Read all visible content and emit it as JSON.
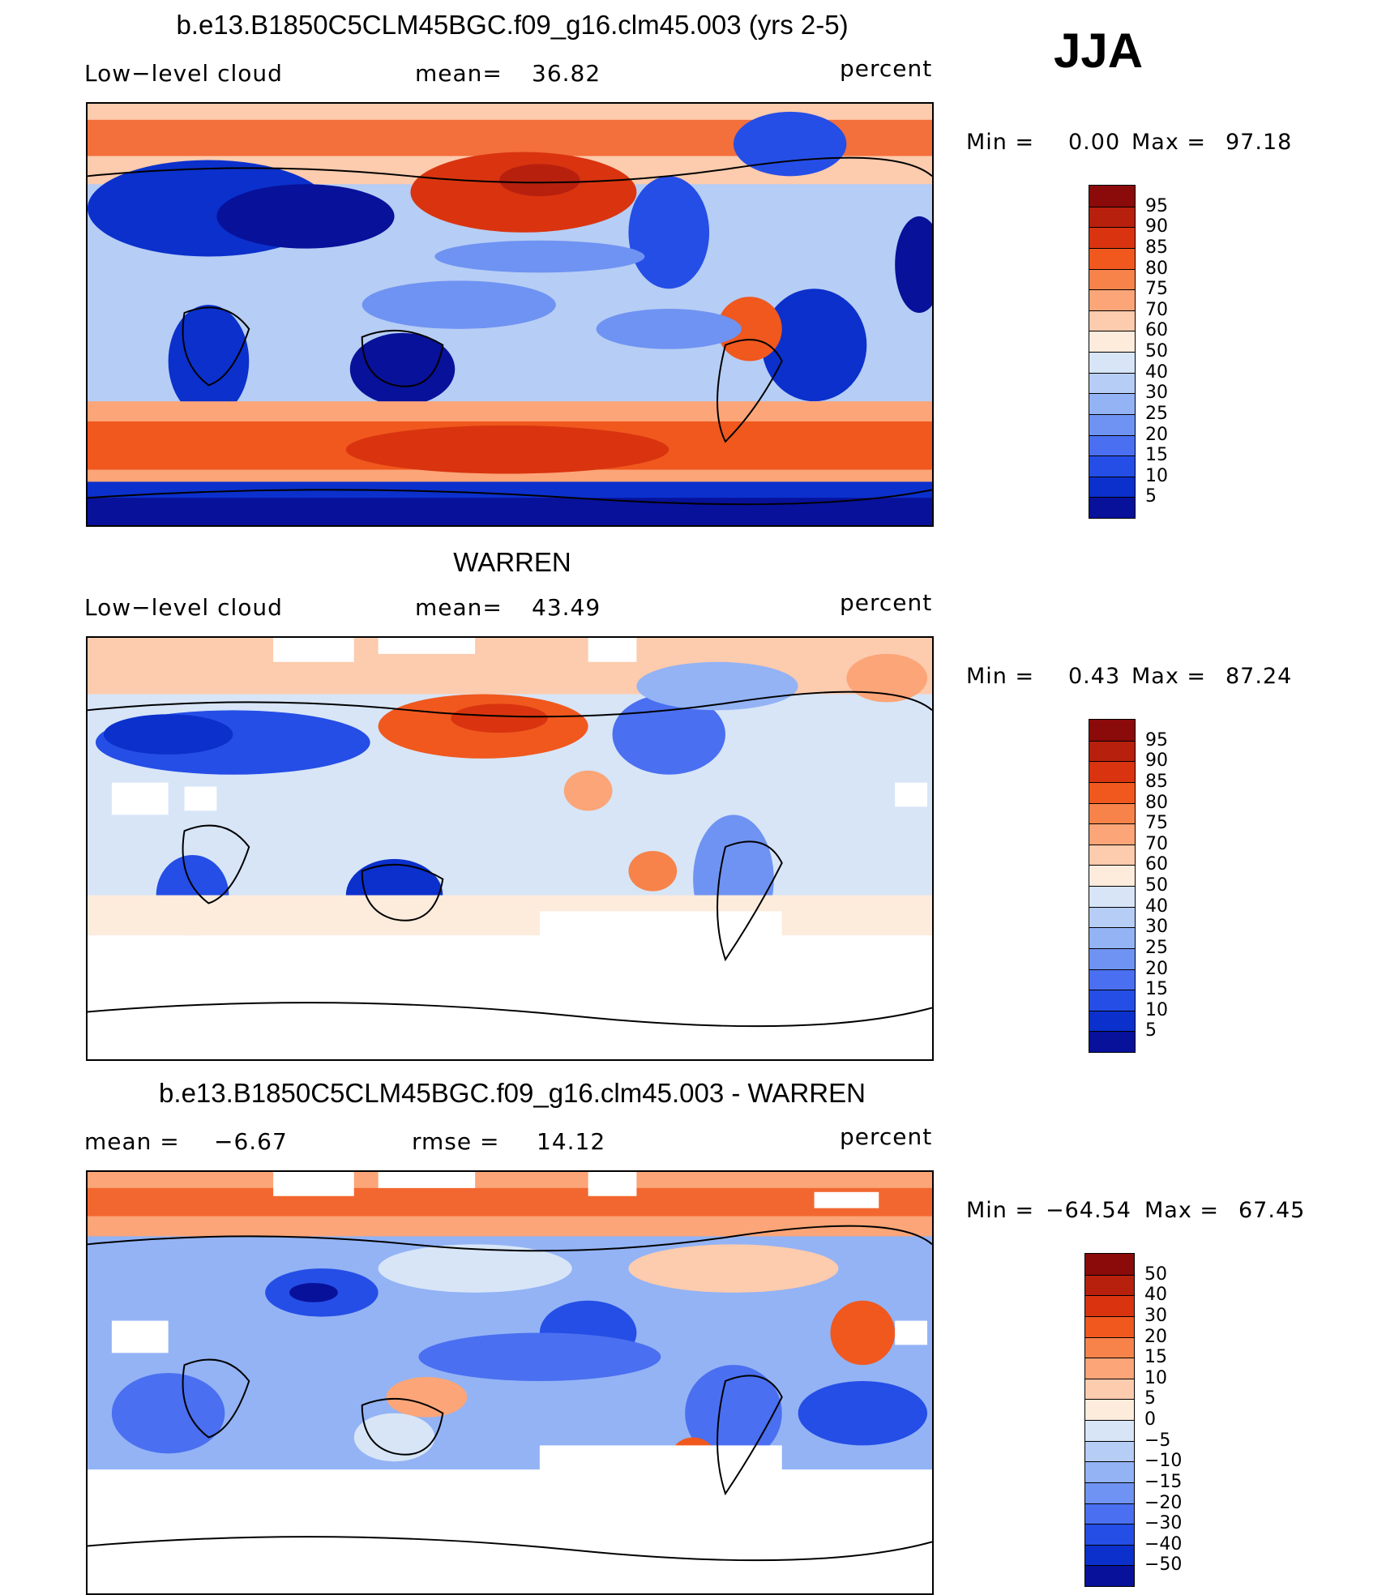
{
  "season": "JJA",
  "units": "percent",
  "panels": [
    {
      "id": "model",
      "title": "b.e13.B1850C5CLM45BGC.f09_g16.clm45.003 (yrs 2-5)",
      "left_label": "Low−level cloud",
      "stat1_label": "mean=",
      "stat1_value": "36.82",
      "stat2_label": "",
      "stat2_value": "",
      "units": "percent",
      "min_label": "Min  =",
      "min_value": "0.00",
      "max_label": "Max  =",
      "max_value": "97.18",
      "colorbar": {
        "colors": [
          "#8b0a0a",
          "#b8200e",
          "#d9340f",
          "#f0581e",
          "#f7834a",
          "#fba578",
          "#fdcbad",
          "#fdebdc",
          "#d7e5f7",
          "#b6cdf5",
          "#93b3f5",
          "#6f93f2",
          "#4a6ff0",
          "#254ee6",
          "#0b30cc",
          "#08119a"
        ],
        "labels": [
          "95",
          "90",
          "85",
          "80",
          "75",
          "70",
          "60",
          "50",
          "40",
          "30",
          "25",
          "20",
          "15",
          "10",
          "5"
        ]
      }
    },
    {
      "id": "obs",
      "title": "WARREN",
      "left_label": "Low−level cloud",
      "stat1_label": "mean=",
      "stat1_value": "43.49",
      "stat2_label": "",
      "stat2_value": "",
      "units": "percent",
      "min_label": "Min  =",
      "min_value": "0.43",
      "max_label": "Max  =",
      "max_value": "87.24",
      "colorbar": {
        "colors": [
          "#8b0a0a",
          "#b8200e",
          "#d9340f",
          "#f0581e",
          "#f7834a",
          "#fba578",
          "#fdcbad",
          "#fdebdc",
          "#d7e5f7",
          "#b6cdf5",
          "#93b3f5",
          "#6f93f2",
          "#4a6ff0",
          "#254ee6",
          "#0b30cc",
          "#08119a"
        ],
        "labels": [
          "95",
          "90",
          "85",
          "80",
          "75",
          "70",
          "60",
          "50",
          "40",
          "30",
          "25",
          "20",
          "15",
          "10",
          "5"
        ]
      }
    },
    {
      "id": "diff",
      "title": "b.e13.B1850C5CLM45BGC.f09_g16.clm45.003 - WARREN",
      "left_label": "",
      "stat1_label": "mean  =",
      "stat1_value": "−6.67",
      "stat2_label": "rmse  =",
      "stat2_value": "14.12",
      "units": "percent",
      "min_label": "Min  =",
      "min_value": "−64.54",
      "max_label": "Max  =",
      "max_value": "67.45",
      "colorbar": {
        "colors": [
          "#8b0a0a",
          "#b8200e",
          "#d9340f",
          "#f0581e",
          "#f7834a",
          "#fba578",
          "#fdcbad",
          "#fdebdc",
          "#d7e5f7",
          "#b6cdf5",
          "#93b3f5",
          "#6f93f2",
          "#4a6ff0",
          "#254ee6",
          "#0b30cc",
          "#08119a"
        ],
        "labels": [
          "50",
          "40",
          "30",
          "20",
          "15",
          "10",
          "5",
          "0",
          "−5",
          "−10",
          "−15",
          "−20",
          "−30",
          "−40",
          "−50"
        ]
      }
    }
  ]
}
